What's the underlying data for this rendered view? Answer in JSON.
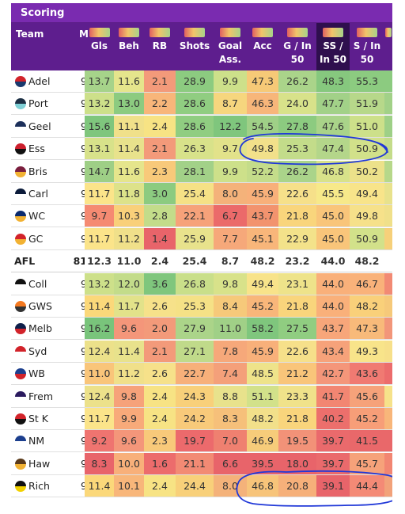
{
  "title": "Scoring",
  "headers": {
    "team": "Team",
    "games": "M",
    "columns": [
      {
        "line1": "Gls",
        "line2": ""
      },
      {
        "line1": "Beh",
        "line2": ""
      },
      {
        "line1": "RB",
        "line2": ""
      },
      {
        "line1": "Shots",
        "line2": ""
      },
      {
        "line1": "Goal",
        "line2": "Ass."
      },
      {
        "line1": "Acc",
        "line2": ""
      },
      {
        "line1": "G / In",
        "line2": "50"
      },
      {
        "line1": "SS /",
        "line2": "In 50"
      },
      {
        "line1": "S / In",
        "line2": "50"
      }
    ]
  },
  "rows": [
    {
      "team": "Adel",
      "games": "9",
      "values": [
        "13.7",
        "11.6",
        "2.1",
        "28.9",
        "9.9",
        "47.3",
        "26.2",
        "48.3",
        "55.3"
      ],
      "colors": [
        "#a6d38a",
        "#e5e58c",
        "#f39a7a",
        "#8ccb80",
        "#cde08a",
        "#f6c977",
        "#aad48a",
        "#86c87e",
        "#8ccb80"
      ],
      "logo": [
        "#d2232a",
        "#1a3a6e"
      ],
      "afl": false
    },
    {
      "team": "Port",
      "games": "9",
      "values": [
        "13.2",
        "13.0",
        "2.2",
        "28.6",
        "8.7",
        "46.3",
        "24.0",
        "47.7",
        "51.9"
      ],
      "colors": [
        "#cde08a",
        "#8ccb80",
        "#f8b67a",
        "#90cd81",
        "#f6d67e",
        "#f7b67a",
        "#d8e28a",
        "#a2d188",
        "#b7d88a"
      ],
      "logo": [
        "#1c2f44",
        "#7fd0d6"
      ],
      "afl": false
    },
    {
      "team": "Geel",
      "games": "9",
      "values": [
        "15.6",
        "11.1",
        "2.4",
        "28.6",
        "12.2",
        "54.5",
        "27.8",
        "47.6",
        "51.0"
      ],
      "colors": [
        "#7fc67d",
        "#f0e08a",
        "#f7e384",
        "#90cd81",
        "#7fc67d",
        "#9fd087",
        "#8ccb80",
        "#a9d389",
        "#cde08a"
      ],
      "logo": [
        "#1c2f5a",
        "#ffffff"
      ],
      "afl": false
    },
    {
      "team": "Ess",
      "games": "9",
      "values": [
        "13.1",
        "11.4",
        "2.1",
        "26.3",
        "9.7",
        "49.8",
        "25.3",
        "47.4",
        "50.9"
      ],
      "colors": [
        "#d8e28a",
        "#e8e28c",
        "#f39a7a",
        "#d8e28a",
        "#e2e28a",
        "#f2e08a",
        "#c3dc8a",
        "#b4d68a",
        "#d2e18a"
      ],
      "logo": [
        "#cc1f2d",
        "#111111"
      ],
      "afl": false
    },
    {
      "team": "Bris",
      "games": "9",
      "values": [
        "14.7",
        "11.6",
        "2.3",
        "28.1",
        "9.9",
        "52.2",
        "26.2",
        "46.8",
        "50.2"
      ],
      "colors": [
        "#9ecf86",
        "#e5e58c",
        "#f8c97a",
        "#a2d188",
        "#cde08a",
        "#c4dc8a",
        "#aad48a",
        "#d8e28a",
        "#ece18a"
      ],
      "logo": [
        "#7b1f3e",
        "#f2b233"
      ],
      "afl": false
    },
    {
      "team": "Carl",
      "games": "9",
      "values": [
        "11.7",
        "11.8",
        "3.0",
        "25.4",
        "8.0",
        "45.9",
        "22.6",
        "45.5",
        "49.4"
      ],
      "colors": [
        "#fbe48a",
        "#dde28a",
        "#8ccb80",
        "#f5e186",
        "#f4b27a",
        "#f8b07a",
        "#f6e08a",
        "#f7e98a",
        "#f8e48a"
      ],
      "logo": [
        "#0b1b3a",
        "#ffffff"
      ],
      "afl": false
    },
    {
      "team": "WC",
      "games": "9",
      "values": [
        "9.7",
        "10.3",
        "2.8",
        "22.1",
        "6.7",
        "43.7",
        "21.8",
        "45.0",
        "49.8"
      ],
      "colors": [
        "#f58a72",
        "#f9d07a",
        "#c3dc8a",
        "#f6a27a",
        "#eb6a6a",
        "#f2936e",
        "#f9d57c",
        "#f9c57a",
        "#f6e18a"
      ],
      "logo": [
        "#0a2a6e",
        "#f2b233"
      ],
      "afl": false
    },
    {
      "team": "GC",
      "games": "9",
      "values": [
        "11.7",
        "11.2",
        "1.4",
        "25.9",
        "7.7",
        "45.1",
        "22.9",
        "45.0",
        "50.9"
      ],
      "colors": [
        "#fbe48a",
        "#f0e08a",
        "#e8646a",
        "#e8e28c",
        "#f6a87a",
        "#f8b67a",
        "#f3e28a",
        "#f9c57a",
        "#d2e18a"
      ],
      "logo": [
        "#d2232a",
        "#f2b233"
      ],
      "afl": false
    },
    {
      "team": "AFL",
      "games": "81",
      "values": [
        "12.3",
        "11.0",
        "2.4",
        "25.4",
        "8.7",
        "48.2",
        "23.2",
        "44.0",
        "48.2"
      ],
      "colors": [
        "#ffffff",
        "#ffffff",
        "#ffffff",
        "#ffffff",
        "#ffffff",
        "#ffffff",
        "#ffffff",
        "#ffffff",
        "#ffffff"
      ],
      "logo": [
        "#ffffff",
        "#ffffff"
      ],
      "afl": true
    },
    {
      "team": "Coll",
      "games": "9",
      "values": [
        "13.2",
        "12.0",
        "3.6",
        "26.8",
        "9.8",
        "49.4",
        "23.1",
        "44.0",
        "46.7"
      ],
      "colors": [
        "#cde08a",
        "#c3dc8a",
        "#7fc67d",
        "#c9df8a",
        "#d8e28a",
        "#f8e38a",
        "#eee38a",
        "#f9b07a",
        "#f9b27a"
      ],
      "logo": [
        "#111111",
        "#ffffff"
      ],
      "afl": false
    },
    {
      "team": "GWS",
      "games": "9",
      "values": [
        "11.4",
        "11.7",
        "2.6",
        "25.3",
        "8.4",
        "45.2",
        "21.8",
        "44.0",
        "48.2"
      ],
      "colors": [
        "#fbd87a",
        "#e2e28a",
        "#f6e18a",
        "#f5e186",
        "#f6c97a",
        "#f8b67a",
        "#f9d57c",
        "#f9b07a",
        "#f9d07a"
      ],
      "logo": [
        "#f47920",
        "#333333"
      ],
      "afl": false
    },
    {
      "team": "Melb",
      "games": "9",
      "values": [
        "16.2",
        "9.6",
        "2.0",
        "27.9",
        "11.0",
        "58.2",
        "27.5",
        "43.7",
        "47.3"
      ],
      "colors": [
        "#79c47b",
        "#f4967a",
        "#f39a7a",
        "#abd489",
        "#a0d087",
        "#7fc67d",
        "#90cd81",
        "#f7a67a",
        "#f8ba7a"
      ],
      "logo": [
        "#0f1f4a",
        "#d2232a"
      ],
      "afl": false
    },
    {
      "team": "Syd",
      "games": "9",
      "values": [
        "12.4",
        "11.4",
        "2.1",
        "27.1",
        "7.8",
        "45.9",
        "22.6",
        "43.4",
        "49.3"
      ],
      "colors": [
        "#ece18a",
        "#e8e28c",
        "#f39a7a",
        "#c0da8a",
        "#f6a87a",
        "#f8b07a",
        "#f6e08a",
        "#f6a27a",
        "#f8e48a"
      ],
      "logo": [
        "#d2232a",
        "#ffffff"
      ],
      "afl": false
    },
    {
      "team": "WB",
      "games": "9",
      "values": [
        "11.0",
        "11.2",
        "2.6",
        "22.7",
        "7.4",
        "48.5",
        "21.2",
        "42.7",
        "43.6"
      ],
      "colors": [
        "#f9c57a",
        "#f0e08a",
        "#f6e18a",
        "#f7b07a",
        "#f4a07a",
        "#eee38a",
        "#f9c57a",
        "#f4967a",
        "#f07a72"
      ],
      "logo": [
        "#1c3f8e",
        "#d2232a"
      ],
      "afl": false
    },
    {
      "team": "Frem",
      "games": "9",
      "values": [
        "12.4",
        "9.8",
        "2.4",
        "24.3",
        "8.8",
        "51.1",
        "23.3",
        "41.7",
        "45.6"
      ],
      "colors": [
        "#ece18a",
        "#f6a27a",
        "#f7e384",
        "#f8d07a",
        "#e8e28c",
        "#d2e18a",
        "#f0e28a",
        "#f28672",
        "#f6a27a"
      ],
      "logo": [
        "#2a1a5e",
        "#ffffff"
      ],
      "afl": false
    },
    {
      "team": "St K",
      "games": "9",
      "values": [
        "11.7",
        "9.9",
        "2.4",
        "24.2",
        "8.3",
        "48.2",
        "21.8",
        "40.2",
        "45.2"
      ],
      "colors": [
        "#fbe48a",
        "#f8aa7a",
        "#f7e384",
        "#f8ca7a",
        "#f6c07a",
        "#f2e08a",
        "#f9d57c",
        "#ec6f6c",
        "#f79e78"
      ],
      "logo": [
        "#d2232a",
        "#111111"
      ],
      "afl": false
    },
    {
      "team": "NM",
      "games": "9",
      "values": [
        "9.2",
        "9.6",
        "2.3",
        "19.7",
        "7.0",
        "46.9",
        "19.5",
        "39.7",
        "41.5"
      ],
      "colors": [
        "#ef7470",
        "#f4967a",
        "#f8c97a",
        "#ec6a6c",
        "#ef8070",
        "#f6cc7a",
        "#f29278",
        "#ea6a6c",
        "#e9686a"
      ],
      "logo": [
        "#1c3f8e",
        "#ffffff"
      ],
      "afl": false
    },
    {
      "team": "Haw",
      "games": "9",
      "values": [
        "8.3",
        "10.0",
        "1.6",
        "21.1",
        "6.6",
        "39.5",
        "18.0",
        "39.7",
        "45.7"
      ],
      "colors": [
        "#e8646a",
        "#f8b07a",
        "#ec6c6c",
        "#f28a74",
        "#e8646a",
        "#e8646a",
        "#e8646a",
        "#ea6a6c",
        "#f6a27a"
      ],
      "logo": [
        "#5a3a1a",
        "#f2b233"
      ],
      "afl": false
    },
    {
      "team": "Rich",
      "games": "9",
      "values": [
        "11.4",
        "10.1",
        "2.4",
        "24.4",
        "8.0",
        "46.8",
        "20.8",
        "39.1",
        "44.4"
      ],
      "colors": [
        "#fbd87a",
        "#f8b67a",
        "#f7e384",
        "#f8d07a",
        "#f4b27a",
        "#f7c47a",
        "#f6b07a",
        "#e8646a",
        "#f48a76"
      ],
      "logo": [
        "#111111",
        "#f2d100"
      ],
      "afl": false
    }
  ],
  "partial_column_colors": [
    "#8ccb80",
    "#a2d188",
    "#9ed087",
    "#c4dc8a",
    "#b7d88a",
    "#e8e28c",
    "#f0e08a",
    "#f6d07a",
    "#ffffff",
    "#f28a74",
    "#f6c97a",
    "#f2967a",
    "#f7e08a",
    "#ec6c6c",
    "#f6e28a",
    "#f8b67a",
    "#e9686a",
    "#f28672",
    "#f2a27a"
  ]
}
